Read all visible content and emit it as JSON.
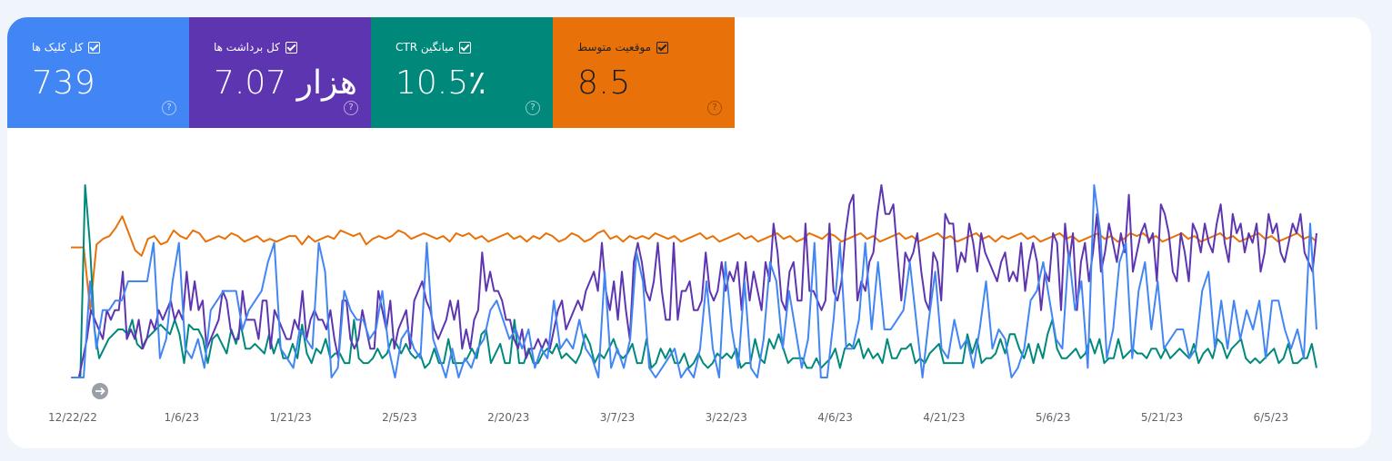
{
  "metrics": {
    "clicks": {
      "label": "کل کلیک ها",
      "value": "739"
    },
    "impressions": {
      "label": "کل برداشت ها",
      "value": "7.07 هزار"
    },
    "ctr": {
      "label": "میانگین CTR",
      "value": "10.5٪"
    },
    "position": {
      "label": "موقعیت متوسط",
      "value": "8.5"
    }
  },
  "colors": {
    "clicks": "#4285f4",
    "impressions": "#5e35b1",
    "ctr": "#00897b",
    "position": "#e8710a"
  },
  "chart_data": {
    "type": "line",
    "x_tick_labels": [
      "12/22/22",
      "1/6/23",
      "1/21/23",
      "2/5/23",
      "2/20/23",
      "3/7/23",
      "3/22/23",
      "4/6/23",
      "4/21/23",
      "5/6/23",
      "5/21/23",
      "6/5/23"
    ],
    "series": [
      {
        "key": "clicks",
        "values": [
          0,
          0,
          0,
          10,
          3,
          7,
          7,
          8,
          8,
          10,
          10,
          10,
          10,
          14,
          2,
          4,
          10,
          14,
          3,
          2,
          4,
          1,
          7,
          8,
          9,
          9,
          9,
          5,
          7,
          8,
          9,
          12,
          14,
          3,
          2,
          1,
          5,
          4,
          3,
          14,
          11,
          0,
          1,
          9,
          7,
          6,
          6,
          4,
          5,
          9,
          3,
          0,
          4,
          5,
          3,
          2,
          14,
          4,
          2,
          0,
          3,
          0,
          2,
          1,
          3,
          4,
          7,
          8,
          6,
          4,
          5,
          3,
          5,
          1,
          3,
          2,
          8,
          3,
          4,
          3,
          6,
          3,
          2,
          0,
          11,
          1,
          3,
          1,
          4,
          13,
          10,
          1,
          0,
          1,
          2,
          3,
          0,
          1,
          0,
          3,
          10,
          3,
          0,
          12,
          5,
          1,
          10,
          1,
          0,
          4,
          12,
          10,
          3,
          9,
          5,
          1,
          4,
          14,
          0,
          0,
          6,
          14,
          3,
          3,
          6,
          14,
          5,
          12,
          5,
          5,
          6,
          7,
          12,
          6,
          0,
          6,
          11,
          3,
          2,
          6,
          3,
          4,
          1,
          5,
          10,
          3,
          5,
          4,
          0,
          1,
          3,
          8,
          9,
          12,
          8,
          4,
          3,
          13,
          7,
          10,
          1,
          20,
          15,
          2,
          5,
          12,
          14,
          2,
          9,
          12,
          5,
          10,
          3,
          4,
          5,
          5,
          2,
          3,
          9,
          11,
          3,
          8,
          3,
          8,
          4,
          7,
          5,
          8,
          2,
          8,
          8,
          5,
          3,
          5,
          2,
          16,
          5
        ]
      },
      {
        "key": "impressions",
        "values": [
          0,
          0,
          0,
          2,
          4,
          7,
          6,
          5,
          4,
          7,
          6,
          7,
          7,
          11,
          4,
          5,
          4,
          6,
          3,
          4,
          6,
          5,
          7,
          6,
          7,
          8,
          6,
          7,
          6,
          11,
          7,
          10,
          7,
          8,
          3,
          4,
          5,
          6,
          9,
          8,
          5,
          4,
          4,
          9,
          6,
          6,
          6,
          4,
          8,
          8,
          3,
          7,
          6,
          5,
          4,
          4,
          6,
          5,
          9,
          4,
          6,
          7,
          6,
          6,
          5,
          7,
          4,
          2,
          8,
          8,
          4,
          3,
          4,
          7,
          5,
          3,
          3,
          9,
          7,
          5,
          8,
          3,
          5,
          6,
          7,
          3,
          8,
          9,
          10,
          8,
          7,
          5,
          4,
          5,
          6,
          8,
          6,
          8,
          3,
          5,
          3,
          6,
          7,
          13,
          9,
          11,
          9,
          9,
          8,
          6,
          6,
          4,
          3,
          5,
          2,
          3,
          3,
          4,
          3,
          4,
          3,
          5,
          7,
          8,
          5,
          6,
          7,
          8,
          7,
          9,
          10,
          11,
          9,
          14,
          9,
          7,
          10,
          6,
          11,
          7,
          4,
          12,
          14,
          12,
          9,
          8,
          10,
          14,
          9,
          6,
          6,
          14,
          6,
          9,
          9,
          10,
          7,
          7,
          8,
          13,
          9,
          8,
          9,
          12,
          9,
          11,
          10,
          12,
          7,
          12,
          8,
          11,
          9,
          7,
          12,
          10,
          16,
          13,
          8,
          7,
          11,
          12,
          8,
          8,
          16,
          9,
          9,
          8,
          7,
          8,
          16,
          9,
          8,
          10,
          15,
          18,
          19,
          8,
          10,
          9,
          12,
          13,
          17,
          20,
          17,
          17,
          18,
          13,
          8,
          13,
          12,
          13,
          15,
          11,
          8,
          7,
          13,
          12,
          8,
          17,
          16,
          16,
          11,
          13,
          12,
          16,
          14,
          11,
          15,
          13,
          12,
          11,
          10,
          12,
          13,
          10,
          11,
          10,
          14,
          9,
          12,
          14,
          12,
          7,
          11,
          10,
          15,
          14,
          7,
          16,
          12,
          15,
          7,
          12,
          14,
          10,
          13,
          17,
          11,
          13,
          16,
          14,
          12,
          15,
          13,
          19,
          11,
          13,
          15,
          16,
          14,
          15,
          10,
          18,
          17,
          15,
          11,
          10,
          15,
          13,
          10,
          16,
          15,
          13,
          16,
          14,
          13,
          16,
          18,
          14,
          12,
          17,
          15,
          16,
          13,
          15,
          14,
          16,
          11,
          13,
          17,
          15,
          16,
          13,
          12,
          14,
          16,
          15,
          17,
          13,
          12,
          11,
          15
        ]
      },
      {
        "key": "ctr",
        "values": [
          0,
          0,
          0,
          40,
          28,
          10,
          4,
          6,
          8,
          9,
          10,
          10,
          9,
          12,
          7,
          6,
          8,
          9,
          10,
          11,
          10,
          9,
          12,
          9,
          3,
          11,
          10,
          10,
          8,
          3,
          8,
          9,
          7,
          5,
          10,
          7,
          11,
          6,
          6,
          7,
          6,
          5,
          9,
          5,
          8,
          4,
          4,
          7,
          4,
          11,
          5,
          3,
          6,
          5,
          8,
          4,
          5,
          5,
          3,
          3,
          12,
          4,
          3,
          3,
          4,
          6,
          4,
          5,
          8,
          7,
          5,
          7,
          5,
          4,
          5,
          2,
          3,
          6,
          3,
          3,
          8,
          3,
          3,
          3,
          4,
          6,
          4,
          9,
          10,
          3,
          5,
          7,
          3,
          3,
          12,
          3,
          3,
          6,
          3,
          3,
          5,
          6,
          5,
          7,
          4,
          5,
          4,
          3,
          5,
          9,
          7,
          3,
          5,
          4,
          6,
          8,
          5,
          4,
          5,
          7,
          3,
          3,
          8,
          2,
          3,
          6,
          4,
          6,
          3,
          3,
          5,
          2,
          3,
          5,
          3,
          2,
          3,
          5,
          4,
          5,
          4,
          6,
          2,
          3,
          3,
          8,
          4,
          3,
          8,
          6,
          9,
          6,
          3,
          4,
          4,
          4,
          2,
          2,
          4,
          2,
          3,
          4,
          6,
          2,
          6,
          7,
          6,
          8,
          4,
          6,
          4,
          5,
          3,
          8,
          4,
          4,
          6,
          6,
          7,
          3,
          4,
          3,
          5,
          6,
          7,
          3,
          3,
          3,
          3,
          3,
          9,
          5,
          8,
          3,
          4,
          4,
          5,
          8,
          5,
          9,
          9,
          6,
          4,
          7,
          3,
          7,
          4,
          9,
          12,
          6,
          4,
          4,
          5,
          6,
          4,
          5,
          8,
          5,
          8,
          3,
          4,
          4,
          8,
          4,
          5,
          6,
          5,
          5,
          4,
          6,
          6,
          4,
          6,
          4,
          5,
          6,
          5,
          4,
          7,
          3,
          5,
          6,
          4,
          8,
          7,
          4,
          6,
          7,
          8,
          4,
          3,
          4,
          3,
          4,
          5,
          6,
          3,
          4,
          7,
          3,
          3,
          4,
          4,
          7,
          2
        ]
      },
      {
        "key": "position",
        "values": [
          14,
          14,
          14,
          36,
          13,
          11,
          10,
          7,
          3,
          9,
          15,
          17,
          11,
          10,
          13,
          12,
          8,
          10,
          11,
          8,
          9,
          12,
          11,
          10,
          11,
          9,
          10,
          12,
          11,
          10,
          12,
          11,
          12,
          11,
          10,
          10,
          13,
          10,
          12,
          11,
          10,
          11,
          8,
          9,
          10,
          9,
          13,
          11,
          10,
          11,
          10,
          8,
          9,
          11,
          10,
          9,
          10,
          11,
          10,
          12,
          9,
          10,
          9,
          11,
          10,
          12,
          11,
          10,
          9,
          11,
          10,
          12,
          10,
          11,
          9,
          10,
          12,
          11,
          9,
          10,
          12,
          11,
          9,
          8,
          11,
          10,
          12,
          10,
          11,
          10,
          11,
          9,
          10,
          11,
          10,
          12,
          11,
          10,
          9,
          11,
          10,
          12,
          11,
          10,
          9,
          11,
          10,
          12,
          11,
          10,
          9,
          11,
          10,
          12,
          11,
          9,
          10,
          11,
          9,
          10,
          12,
          11,
          10,
          9,
          11,
          10,
          12,
          11,
          10,
          9,
          11,
          10,
          12,
          11,
          10,
          9,
          11,
          10,
          12,
          11,
          10,
          9,
          11,
          10,
          12,
          10,
          11,
          10,
          9,
          11,
          10,
          12,
          11,
          10,
          9,
          11,
          10,
          12,
          11,
          10,
          9,
          11,
          10,
          12,
          11,
          9,
          10,
          9,
          11,
          10,
          12,
          11,
          10,
          9,
          11,
          10,
          12,
          11,
          10,
          9,
          11,
          10,
          12,
          11,
          10,
          9,
          11,
          10,
          12,
          11,
          10,
          9,
          11,
          10,
          12
        ]
      }
    ]
  }
}
